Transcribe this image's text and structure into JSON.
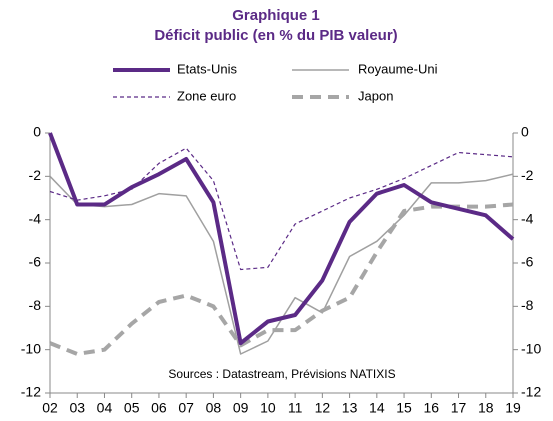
{
  "chart_data": {
    "type": "line",
    "title": "Graphique 1",
    "subtitle": "Déficit public (en % du PIB valeur)",
    "annotation": "Sources : Datastream, Prévisions NATIXIS",
    "categories": [
      "02",
      "03",
      "04",
      "05",
      "06",
      "07",
      "08",
      "09",
      "10",
      "11",
      "12",
      "13",
      "14",
      "15",
      "16",
      "17",
      "18",
      "19"
    ],
    "series": [
      {
        "name": "Etats-Unis",
        "color": "#5b2a86",
        "width": 4,
        "dash": "solid",
        "values": [
          0,
          -3.3,
          -3.3,
          -2.5,
          -1.9,
          -1.2,
          -3.2,
          -9.7,
          -8.7,
          -8.4,
          -6.8,
          -4.1,
          -2.8,
          -2.4,
          -3.2,
          -3.5,
          -3.8,
          -4.9
        ]
      },
      {
        "name": "Royaume-Uni",
        "color": "#a0a0a0",
        "width": 1.5,
        "dash": "solid",
        "values": [
          -2.0,
          -3.3,
          -3.4,
          -3.3,
          -2.8,
          -2.9,
          -5.0,
          -10.2,
          -9.6,
          -7.6,
          -8.3,
          -5.7,
          -5.0,
          -3.8,
          -2.3,
          -2.3,
          -2.2,
          -1.9
        ]
      },
      {
        "name": "Zone euro",
        "color": "#5b2a86",
        "width": 1.2,
        "dash": "short",
        "values": [
          -2.7,
          -3.1,
          -2.9,
          -2.6,
          -1.4,
          -0.7,
          -2.2,
          -6.3,
          -6.2,
          -4.2,
          -3.6,
          -3.0,
          -2.6,
          -2.1,
          -1.5,
          -0.9,
          -1.0,
          -1.1
        ]
      },
      {
        "name": "Japon",
        "color": "#a6a6a6",
        "width": 4,
        "dash": "long",
        "values": [
          -9.7,
          -10.2,
          -10.0,
          -8.8,
          -7.8,
          -7.5,
          -8.0,
          -9.8,
          -9.1,
          -9.1,
          -8.2,
          -7.6,
          -5.5,
          -3.6,
          -3.4,
          -3.4,
          -3.4,
          -3.3
        ]
      }
    ],
    "ylim": [
      -12,
      0
    ],
    "yticks": [
      0,
      -2,
      -4,
      -6,
      -8,
      -10,
      -12
    ],
    "y2lim": [
      -12,
      0
    ],
    "y2ticks": [
      0,
      -2,
      -4,
      -6,
      -8,
      -10,
      -12
    ],
    "grid": false
  }
}
